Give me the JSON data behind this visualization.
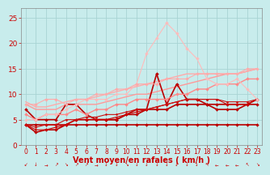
{
  "title": "",
  "xlabel": "Vent moyen/en rafales ( km/h )",
  "x": [
    0,
    1,
    2,
    3,
    4,
    5,
    6,
    7,
    8,
    9,
    10,
    11,
    12,
    13,
    14,
    15,
    16,
    17,
    18,
    19,
    20,
    21,
    22,
    23
  ],
  "background_color": "#c8ecec",
  "grid_color": "#a8d4d4",
  "lines": [
    {
      "comment": "flat dark red line near y=4",
      "y": [
        4,
        4,
        4,
        4,
        4,
        4,
        4,
        4,
        4,
        4,
        4,
        4,
        4,
        4,
        4,
        4,
        4,
        4,
        4,
        4,
        4,
        4,
        4,
        4
      ],
      "color": "#bb0000",
      "lw": 1.2,
      "marker": "D",
      "ms": 2.0
    },
    {
      "comment": "dark red - slightly rising from 2.5 to ~8",
      "y": [
        4,
        2.5,
        3,
        3,
        4,
        5,
        5,
        5,
        5,
        5,
        6,
        6,
        7,
        7,
        7,
        8,
        8,
        8,
        8,
        8,
        8,
        8,
        8,
        8
      ],
      "color": "#bb0000",
      "lw": 1.2,
      "marker": "D",
      "ms": 2.0
    },
    {
      "comment": "dark red - spiky, goes to 14 at x=13",
      "y": [
        7,
        5,
        5,
        5,
        8,
        8,
        6,
        5,
        5,
        5,
        6,
        7,
        7,
        14,
        8,
        12,
        9,
        9,
        8,
        7,
        7,
        7,
        8,
        9
      ],
      "color": "#bb0000",
      "lw": 1.2,
      "marker": "D",
      "ms": 2.0
    },
    {
      "comment": "dark red thin - rises steadily 4 to 9",
      "y": [
        4,
        3,
        3,
        3.5,
        4,
        5,
        5,
        5,
        5,
        5.5,
        6,
        6.5,
        7,
        7.5,
        8,
        8.5,
        9,
        9,
        9,
        9,
        8,
        8,
        8,
        9
      ],
      "color": "#cc0000",
      "lw": 0.8,
      "marker": "D",
      "ms": 1.5
    },
    {
      "comment": "medium red - rises 4 to 9",
      "y": [
        4,
        3.5,
        4,
        4,
        5,
        5,
        5.5,
        5.5,
        6,
        6,
        6.5,
        7,
        7,
        7.5,
        8,
        8.5,
        9,
        9,
        9,
        9,
        8.5,
        8.5,
        8.5,
        9
      ],
      "color": "#cc1111",
      "lw": 0.8,
      "marker": "D",
      "ms": 1.5
    },
    {
      "comment": "salmon - rises from 8 to ~15, smooth",
      "y": [
        8,
        7,
        7,
        7,
        8,
        8,
        8,
        8,
        8.5,
        9,
        9.5,
        10,
        10,
        10.5,
        11,
        11.5,
        12,
        12.5,
        13,
        13.5,
        14,
        14,
        14.5,
        15
      ],
      "color": "#ff9999",
      "lw": 1.0,
      "marker": null,
      "ms": 0
    },
    {
      "comment": "light salmon - rises from 8 to 15",
      "y": [
        8.5,
        7.5,
        7.5,
        8,
        8.5,
        9,
        9,
        9.5,
        10,
        10.5,
        11,
        11.5,
        12,
        12.5,
        13,
        13.5,
        14,
        14,
        14,
        14,
        14,
        14,
        14.5,
        15
      ],
      "color": "#ffaaaa",
      "lw": 1.0,
      "marker": null,
      "ms": 0
    },
    {
      "comment": "salmon with markers - bumpy rise 5 to 13",
      "y": [
        6,
        5,
        6,
        6,
        6,
        7,
        6,
        7,
        7,
        8,
        8,
        9,
        9,
        9,
        9,
        10,
        10,
        11,
        11,
        12,
        12,
        12,
        13,
        13
      ],
      "color": "#ff8888",
      "lw": 1.0,
      "marker": "D",
      "ms": 2.0
    },
    {
      "comment": "light pink - peaks at 18 and 24",
      "y": [
        5,
        5,
        6,
        6,
        7,
        8,
        9,
        9,
        9,
        10,
        10,
        12,
        18,
        21,
        24,
        22,
        19,
        17,
        13,
        12,
        12,
        13,
        11,
        9
      ],
      "color": "#ffbbbb",
      "lw": 0.8,
      "marker": "D",
      "ms": 2.0
    },
    {
      "comment": "light salmon - rises from 8 to 15, with bump at 8",
      "y": [
        8,
        8,
        9,
        9,
        8,
        9,
        9,
        10,
        10,
        11,
        11,
        12,
        12,
        12,
        13,
        13,
        13,
        14,
        14,
        14,
        14,
        14,
        15,
        15
      ],
      "color": "#ffaaaa",
      "lw": 0.8,
      "marker": "D",
      "ms": 2.0
    }
  ],
  "ylim": [
    0,
    27
  ],
  "yticks": [
    0,
    5,
    10,
    15,
    20,
    25
  ],
  "xlim": [
    -0.5,
    23.5
  ],
  "xticks": [
    0,
    1,
    2,
    3,
    4,
    5,
    6,
    7,
    8,
    9,
    10,
    11,
    12,
    13,
    14,
    15,
    16,
    17,
    18,
    19,
    20,
    21,
    22,
    23
  ],
  "tick_color": "#cc0000",
  "label_color": "#cc0000",
  "axis_color": "#888888",
  "xlabel_fontsize": 7,
  "tick_fontsize": 5.5,
  "ytick_fontsize": 6.5,
  "arrows": [
    "↙",
    "↓",
    "→",
    "↗",
    "↘",
    "↗",
    "↗",
    "→",
    "↓",
    "↓",
    "↘",
    "↓",
    "↓",
    "↓",
    "↓",
    "↓",
    "↓",
    "↓",
    "↖",
    "←",
    "←",
    "←",
    "↖",
    "↘"
  ]
}
